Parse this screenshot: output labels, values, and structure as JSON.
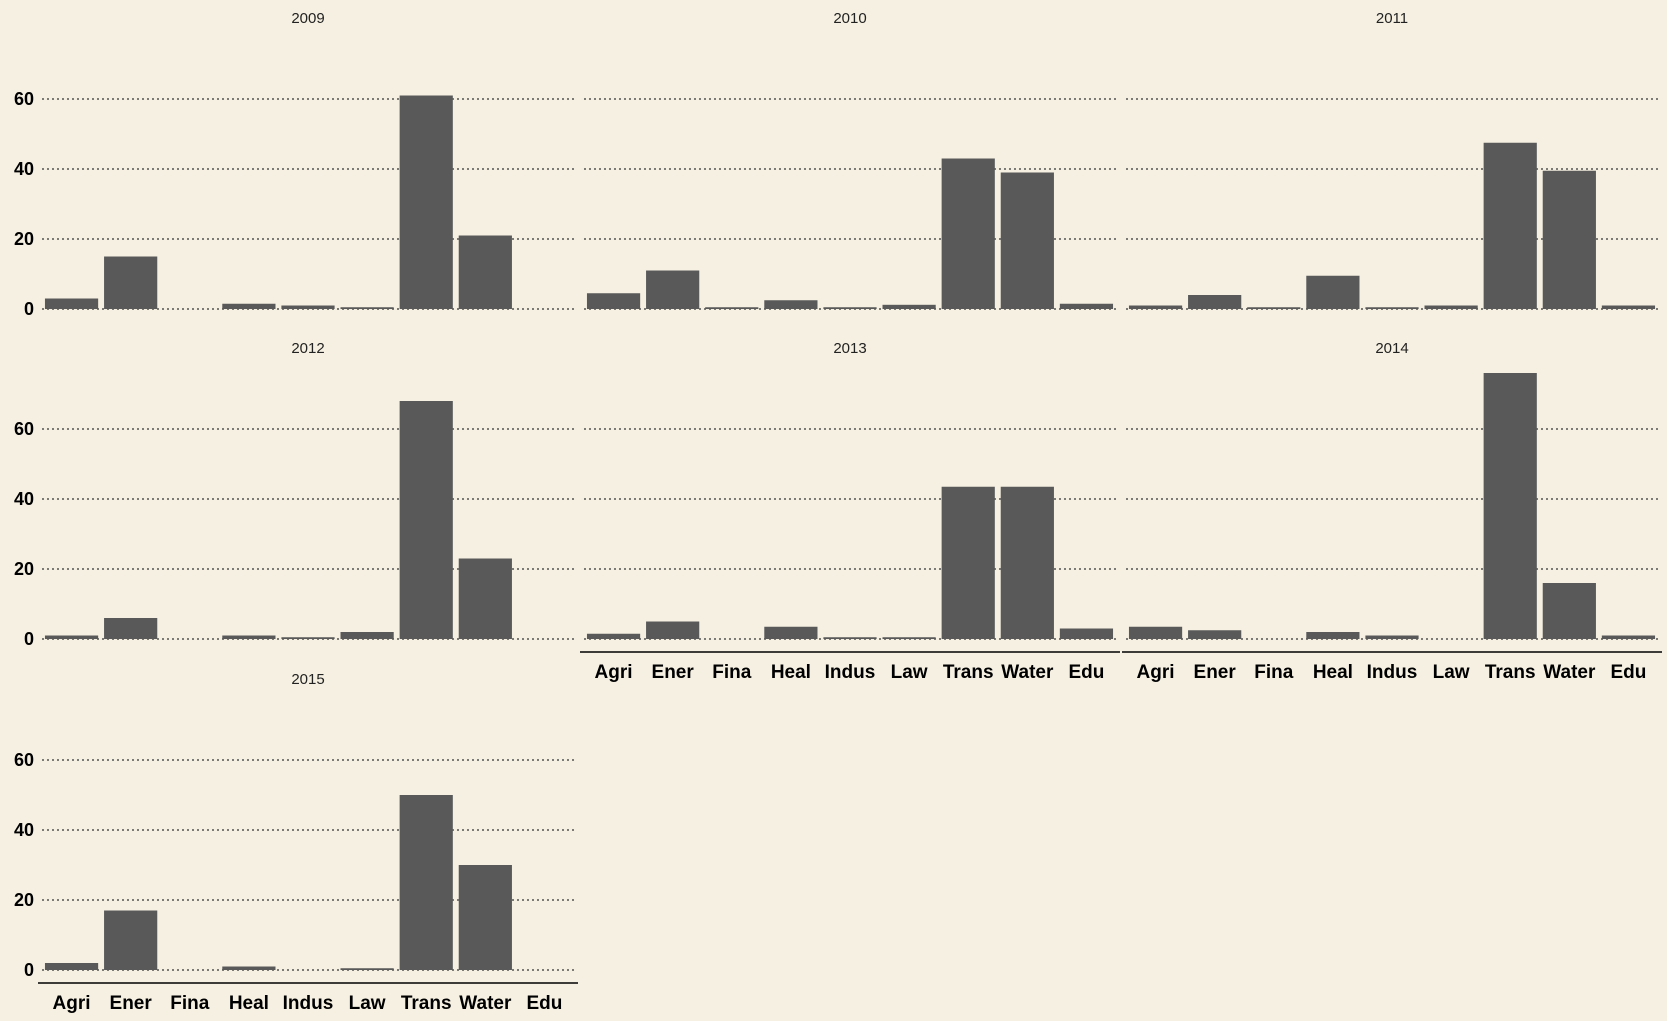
{
  "chart_data": {
    "type": "bar",
    "layout": "facet-wrap",
    "categories": [
      "Agri",
      "Ener",
      "Fina",
      "Heal",
      "Indus",
      "Law",
      "Trans",
      "Water",
      "Edu"
    ],
    "y_ticks": [
      0,
      20,
      40,
      60
    ],
    "ylim": [
      0,
      76
    ],
    "grid": "horizontal-dotted",
    "bar_color": "#595959",
    "background_color": "#f6f0e2",
    "panels": [
      {
        "title": "2009",
        "values": [
          3,
          15,
          0,
          1.5,
          1,
          0.5,
          61,
          21,
          0
        ]
      },
      {
        "title": "2010",
        "values": [
          4.5,
          11,
          0.5,
          2.5,
          0.5,
          1.2,
          43,
          39,
          1.5
        ]
      },
      {
        "title": "2011",
        "values": [
          1,
          4,
          0.5,
          9.5,
          0.5,
          1,
          47.5,
          39.5,
          1
        ]
      },
      {
        "title": "2012",
        "values": [
          1,
          6,
          0,
          1,
          0.5,
          2,
          68,
          23,
          0
        ]
      },
      {
        "title": "2013",
        "values": [
          1.5,
          5,
          0,
          3.5,
          0.5,
          0.5,
          43.5,
          43.5,
          3
        ]
      },
      {
        "title": "2014",
        "values": [
          3.5,
          2.5,
          0,
          2,
          1,
          0,
          76,
          16,
          1
        ]
      },
      {
        "title": "2015",
        "values": [
          2,
          17,
          0,
          1,
          0,
          0.5,
          50,
          30,
          0
        ]
      }
    ]
  }
}
